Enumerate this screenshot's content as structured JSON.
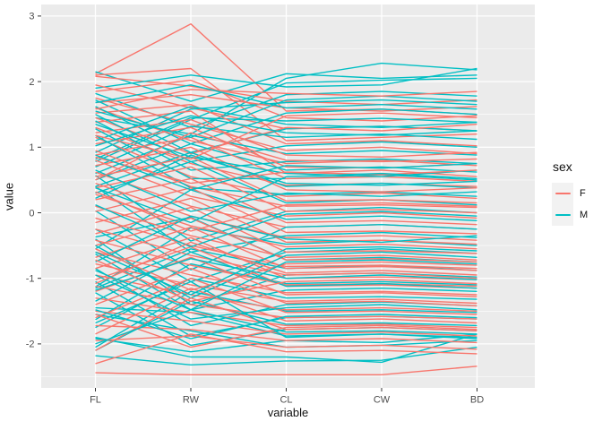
{
  "axes": {
    "x_title": "variable",
    "y_title": "value"
  },
  "legend": {
    "title": "sex",
    "entries": [
      {
        "label": "F",
        "color": "#F8766D"
      },
      {
        "label": "M",
        "color": "#00BFC4"
      }
    ]
  },
  "chart_data": {
    "type": "line",
    "subtype": "parallel-coordinates",
    "title": "",
    "xlabel": "variable",
    "ylabel": "value",
    "categories": [
      "FL",
      "RW",
      "CL",
      "CW",
      "BD"
    ],
    "ylim": [
      -2.67,
      3.18
    ],
    "yticks": [
      3,
      2,
      1,
      0,
      -1,
      -2
    ],
    "yminor": [
      2.5,
      1.5,
      0.5,
      -0.5,
      -1.5,
      -2.5
    ],
    "grid": true,
    "panel_bg": "#EBEBEB",
    "grid_color": "#FFFFFF",
    "tick_color": "#333333",
    "tick_label_color": "#4D4D4D",
    "legend_position": "right",
    "series": [
      {
        "name": "F",
        "color": "#F8766D",
        "lines": [
          [
            2.12,
            2.88,
            1.55,
            1.58,
            1.5
          ],
          [
            2.1,
            2.2,
            1.1,
            1.15,
            1.2
          ],
          [
            2.08,
            1.93,
            1.7,
            1.65,
            1.72
          ],
          [
            1.95,
            1.6,
            1.28,
            1.32,
            1.25
          ],
          [
            1.85,
            2.02,
            1.45,
            1.4,
            1.48
          ],
          [
            1.75,
            1.35,
            0.95,
            1.0,
            0.9
          ],
          [
            1.68,
            1.8,
            1.6,
            1.55,
            1.62
          ],
          [
            1.6,
            1.1,
            0.75,
            0.8,
            0.72
          ],
          [
            1.52,
            1.65,
            1.05,
            1.1,
            1.02
          ],
          [
            1.45,
            0.9,
            1.3,
            1.25,
            1.35
          ],
          [
            1.38,
            1.55,
            0.6,
            0.65,
            0.55
          ],
          [
            1.3,
            0.75,
            0.42,
            0.45,
            0.4
          ],
          [
            1.22,
            1.42,
            0.88,
            0.85,
            0.92
          ],
          [
            1.15,
            0.55,
            0.25,
            0.3,
            0.22
          ],
          [
            1.05,
            1.3,
            0.7,
            0.68,
            0.75
          ],
          [
            0.95,
            0.4,
            0.1,
            0.12,
            0.08
          ],
          [
            0.88,
            1.15,
            0.52,
            0.55,
            0.48
          ],
          [
            0.8,
            0.25,
            -0.05,
            0.0,
            -0.08
          ],
          [
            0.72,
            1.0,
            0.35,
            0.32,
            0.38
          ],
          [
            0.62,
            0.1,
            -0.22,
            -0.18,
            -0.25
          ],
          [
            0.55,
            0.85,
            0.18,
            0.2,
            0.15
          ],
          [
            0.45,
            -0.05,
            -0.38,
            -0.35,
            -0.42
          ],
          [
            0.38,
            0.7,
            0.02,
            0.05,
            0.0
          ],
          [
            0.28,
            -0.2,
            -0.52,
            -0.48,
            -0.55
          ],
          [
            0.2,
            0.52,
            -0.15,
            -0.12,
            -0.18
          ],
          [
            0.1,
            -0.35,
            -0.68,
            -0.65,
            -0.72
          ],
          [
            0.02,
            0.38,
            -0.3,
            -0.28,
            -0.32
          ],
          [
            -0.08,
            -0.5,
            -0.82,
            -0.8,
            -0.85
          ],
          [
            -0.15,
            0.22,
            -0.45,
            -0.42,
            -0.48
          ],
          [
            -0.25,
            -0.65,
            -0.95,
            -0.92,
            -1.0
          ],
          [
            -0.32,
            0.08,
            -0.6,
            -0.58,
            -0.62
          ],
          [
            -0.42,
            -0.8,
            -1.1,
            -1.08,
            -1.12
          ],
          [
            -0.5,
            -0.08,
            -0.72,
            -0.7,
            -0.75
          ],
          [
            -0.6,
            -0.95,
            -1.22,
            -1.2,
            -1.25
          ],
          [
            -0.68,
            -0.22,
            -0.85,
            -0.82,
            -0.88
          ],
          [
            -0.78,
            -1.1,
            -1.35,
            -1.32,
            -1.38
          ],
          [
            -0.85,
            -0.38,
            -1.0,
            -0.98,
            -1.02
          ],
          [
            -0.95,
            -1.25,
            -1.48,
            -1.45,
            -1.5
          ],
          [
            -1.02,
            -0.52,
            -1.12,
            -1.1,
            -1.15
          ],
          [
            -1.12,
            -1.4,
            -1.6,
            -1.58,
            -1.62
          ],
          [
            -1.2,
            -0.68,
            -1.25,
            -1.22,
            -1.28
          ],
          [
            -1.3,
            -1.52,
            -1.72,
            -1.7,
            -1.75
          ],
          [
            -1.4,
            -0.85,
            -1.38,
            -1.35,
            -1.42
          ],
          [
            -1.5,
            -1.65,
            -1.85,
            -1.82,
            -1.88
          ],
          [
            -1.6,
            -1.0,
            -1.52,
            -1.5,
            -1.55
          ],
          [
            -1.72,
            -1.78,
            -1.95,
            -1.92,
            -1.98
          ],
          [
            -1.85,
            -1.15,
            -1.65,
            -1.62,
            -1.68
          ],
          [
            -1.95,
            -1.88,
            -2.05,
            -2.02,
            -2.08
          ],
          [
            -2.1,
            -1.3,
            -1.78,
            -1.75,
            -1.8
          ],
          [
            -2.44,
            -2.47,
            -2.47,
            -2.47,
            -2.34
          ],
          [
            0.85,
            0.45,
            0.62,
            0.58,
            0.65
          ],
          [
            -0.55,
            -1.18,
            -0.78,
            -0.75,
            -0.8
          ],
          [
            1.58,
            1.88,
            1.82,
            1.78,
            1.85
          ],
          [
            0.32,
            -0.28,
            0.12,
            0.15,
            0.1
          ],
          [
            -1.08,
            -0.45,
            -0.92,
            -0.88,
            -0.95
          ],
          [
            1.18,
            0.82,
            1.48,
            1.52,
            1.45
          ],
          [
            -0.72,
            -1.35,
            -1.05,
            -1.02,
            -1.08
          ],
          [
            0.5,
            1.22,
            0.8,
            0.78,
            0.82
          ],
          [
            -1.55,
            -2.05,
            -1.75,
            -1.72,
            -1.78
          ],
          [
            -2.3,
            -1.85,
            -2.12,
            -2.1,
            -2.15
          ]
        ]
      },
      {
        "name": "M",
        "color": "#00BFC4",
        "lines": [
          [
            2.15,
            1.7,
            2.12,
            2.05,
            2.1
          ],
          [
            1.45,
            1.2,
            2.05,
            2.28,
            2.18
          ],
          [
            1.9,
            2.1,
            1.92,
            1.95,
            2.2
          ],
          [
            0.78,
            1.42,
            1.98,
            2.02,
            2.05
          ],
          [
            1.82,
            1.3,
            1.8,
            1.85,
            1.78
          ],
          [
            0.92,
            1.58,
            1.68,
            1.72,
            1.65
          ],
          [
            1.72,
            1.05,
            1.52,
            1.58,
            1.5
          ],
          [
            0.82,
            1.45,
            1.4,
            1.44,
            1.38
          ],
          [
            1.62,
            0.92,
            1.28,
            1.32,
            1.25
          ],
          [
            0.7,
            1.32,
            1.15,
            1.2,
            1.12
          ],
          [
            1.5,
            0.78,
            1.02,
            1.08,
            1.0
          ],
          [
            0.6,
            1.18,
            0.9,
            0.95,
            0.88
          ],
          [
            1.4,
            0.65,
            0.78,
            0.82,
            0.75
          ],
          [
            0.5,
            1.05,
            0.65,
            0.7,
            0.62
          ],
          [
            1.28,
            0.52,
            0.52,
            0.58,
            0.5
          ],
          [
            0.4,
            0.92,
            0.4,
            0.45,
            0.38
          ],
          [
            1.18,
            0.38,
            0.28,
            0.32,
            0.25
          ],
          [
            0.3,
            0.78,
            0.15,
            0.2,
            0.12
          ],
          [
            0.57,
            -0.43,
            0.02,
            0.08,
            0.0
          ],
          [
            -0.55,
            0.35,
            -0.1,
            -0.05,
            -0.12
          ],
          [
            0.03,
            -0.87,
            -0.22,
            -0.18,
            -0.25
          ],
          [
            0.4,
            -0.6,
            -0.35,
            -0.3,
            -0.38
          ],
          [
            -1.13,
            -0.23,
            -0.48,
            -0.42,
            -0.5
          ],
          [
            -0.25,
            -1.05,
            -0.6,
            -0.55,
            -0.62
          ],
          [
            -0.37,
            -0.07,
            -0.72,
            -0.68,
            -0.75
          ],
          [
            -1.15,
            -0.55,
            -0.85,
            -0.8,
            -0.88
          ],
          [
            -0.4,
            -1.4,
            -0.95,
            -0.92,
            -0.98
          ],
          [
            -1.63,
            -0.78,
            -1.08,
            -1.05,
            -1.1
          ],
          [
            -0.63,
            -1.48,
            -1.18,
            -1.15,
            -1.2
          ],
          [
            -1.75,
            -1.0,
            -1.3,
            -1.28,
            -1.32
          ],
          [
            -0.85,
            -1.72,
            -1.4,
            -1.36,
            -1.42
          ],
          [
            -2.05,
            -1.2,
            -1.5,
            -1.48,
            -1.52
          ],
          [
            -1.05,
            -1.88,
            -1.6,
            -1.58,
            -1.62
          ],
          [
            -2.1,
            -1.35,
            -1.7,
            -1.68,
            -1.72
          ],
          [
            -1.22,
            -2.02,
            -1.78,
            -1.75,
            -1.8
          ],
          [
            -1.45,
            -1.52,
            -1.88,
            -1.85,
            -1.9
          ],
          [
            -1.92,
            -2.12,
            -1.95,
            -1.98,
            -1.85
          ],
          [
            -1.55,
            -1.8,
            -2.05,
            -2.02,
            -1.95
          ],
          [
            -2.18,
            -2.32,
            -2.26,
            -2.25,
            -2.05
          ],
          [
            -1.9,
            -2.2,
            -2.2,
            -2.28,
            -1.85
          ],
          [
            1.35,
            0.85,
            0.6,
            0.55,
            0.65
          ],
          [
            -0.5,
            -1.3,
            -0.65,
            -0.6,
            -0.68
          ],
          [
            0.22,
            0.88,
            0.45,
            0.42,
            0.48
          ],
          [
            -0.75,
            -0.05,
            -0.4,
            -0.45,
            -0.35
          ],
          [
            1.1,
            1.62,
            1.35,
            1.3,
            1.38
          ],
          [
            -1.35,
            -0.6,
            -1.12,
            -1.08,
            -1.15
          ],
          [
            0.65,
            0.02,
            0.3,
            0.25,
            0.32
          ],
          [
            -0.95,
            -1.62,
            -1.45,
            -1.4,
            -1.48
          ],
          [
            1.55,
            1.15,
            1.72,
            1.78,
            1.7
          ],
          [
            -1.68,
            -1.05,
            -1.9,
            -1.85,
            -1.92
          ],
          [
            0.88,
            0.35,
            0.72,
            0.68,
            0.75
          ],
          [
            -0.6,
            -1.25,
            -0.55,
            -0.52,
            -0.58
          ],
          [
            1.68,
            1.95,
            1.6,
            1.65,
            1.58
          ],
          [
            0.12,
            -0.52,
            -0.02,
            0.02,
            -0.05
          ],
          [
            -1.18,
            -0.7,
            -1.0,
            -0.95,
            -1.02
          ],
          [
            1.02,
            1.48,
            1.22,
            1.18,
            1.25
          ],
          [
            -0.88,
            -1.48,
            -0.75,
            -0.72,
            -0.78
          ],
          [
            0.38,
            -0.15,
            0.55,
            0.6,
            0.52
          ],
          [
            -1.48,
            -1.92,
            -1.58,
            -1.55,
            -1.6
          ],
          [
            -2.0,
            -1.48,
            -1.82,
            -1.8,
            -1.85
          ]
        ]
      }
    ]
  }
}
